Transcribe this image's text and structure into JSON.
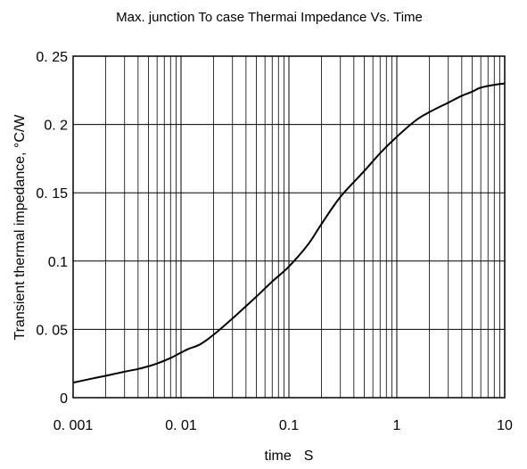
{
  "chart_data": {
    "type": "line",
    "title": "Max. junction To case Thermai Impedance Vs. Time",
    "xlabel": "time S",
    "ylabel": "Transient thermal impedance, °C/W",
    "x_scale": "log",
    "xlim": [
      0.001,
      10
    ],
    "ylim": [
      0,
      0.25
    ],
    "grid": true,
    "x_tick_labels": [
      "0. 001",
      "0. 01",
      "0.1",
      "1",
      "10"
    ],
    "x_tick_values": [
      0.001,
      0.01,
      0.1,
      1,
      10
    ],
    "y_tick_labels": [
      "0",
      "0. 05",
      "0.1",
      "0. 15",
      "0. 2",
      "0. 25"
    ],
    "y_tick_values": [
      0,
      0.05,
      0.1,
      0.15,
      0.2,
      0.25
    ],
    "series": [
      {
        "x": [
          0.001,
          0.0015,
          0.002,
          0.003,
          0.004,
          0.005,
          0.006,
          0.008,
          0.01,
          0.012,
          0.015,
          0.02,
          0.03,
          0.04,
          0.05,
          0.07,
          0.1,
          0.15,
          0.2,
          0.3,
          0.5,
          0.7,
          1,
          1.5,
          2,
          3,
          4,
          5,
          6,
          8,
          10
        ],
        "y": [
          0.011,
          0.014,
          0.016,
          0.019,
          0.021,
          0.023,
          0.025,
          0.029,
          0.033,
          0.036,
          0.039,
          0.046,
          0.058,
          0.067,
          0.074,
          0.085,
          0.096,
          0.112,
          0.127,
          0.147,
          0.166,
          0.179,
          0.191,
          0.203,
          0.209,
          0.216,
          0.221,
          0.224,
          0.227,
          0.229,
          0.23
        ],
        "color": "#000000"
      }
    ]
  }
}
